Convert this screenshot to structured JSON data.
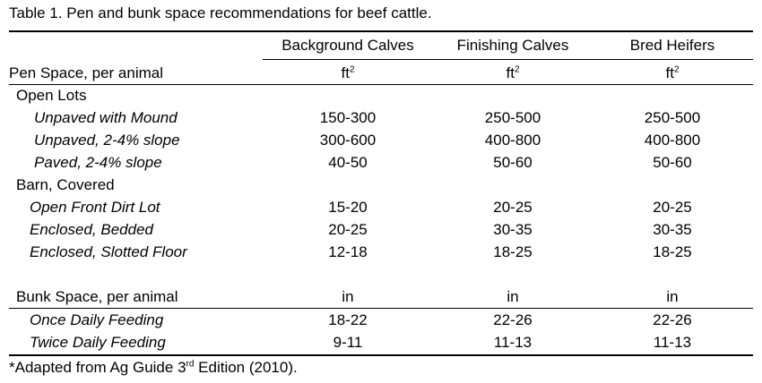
{
  "caption": "Table 1. Pen and bunk space recommendations for beef cattle.",
  "columns": [
    "Background Calves",
    "Finishing Calves",
    "Bred Heifers"
  ],
  "pen_header": {
    "label": "Pen Space, per animal",
    "unit": "ft",
    "unit_sup": "2"
  },
  "groups": [
    {
      "title": "Open Lots",
      "rows": [
        {
          "label": "Unpaved with Mound",
          "values": [
            "150-300",
            "250-500",
            "250-500"
          ]
        },
        {
          "label": "Unpaved, 2-4% slope",
          "values": [
            "300-600",
            "400-800",
            "400-800"
          ]
        },
        {
          "label": "Paved, 2-4% slope",
          "values": [
            "40-50",
            "50-60",
            "50-60"
          ]
        }
      ]
    },
    {
      "title": "Barn, Covered",
      "rows": [
        {
          "label": "Open Front Dirt Lot",
          "values": [
            "15-20",
            "20-25",
            "20-25"
          ]
        },
        {
          "label": "Enclosed, Bedded",
          "values": [
            "20-25",
            "30-35",
            "30-35"
          ]
        },
        {
          "label": "Enclosed, Slotted Floor",
          "values": [
            "12-18",
            "18-25",
            "18-25"
          ]
        }
      ]
    }
  ],
  "bunk_header": {
    "label": "Bunk Space, per animal",
    "unit": "in"
  },
  "bunk_rows": [
    {
      "label": "Once Daily Feeding",
      "values": [
        "18-22",
        "22-26",
        "22-26"
      ]
    },
    {
      "label": "Twice Daily Feeding",
      "values": [
        "9-11",
        "11-13",
        "11-13"
      ]
    }
  ],
  "footnote": {
    "prefix": "*Adapted from Ag Guide 3",
    "sup": "rd",
    "suffix": " Edition (2010)."
  }
}
